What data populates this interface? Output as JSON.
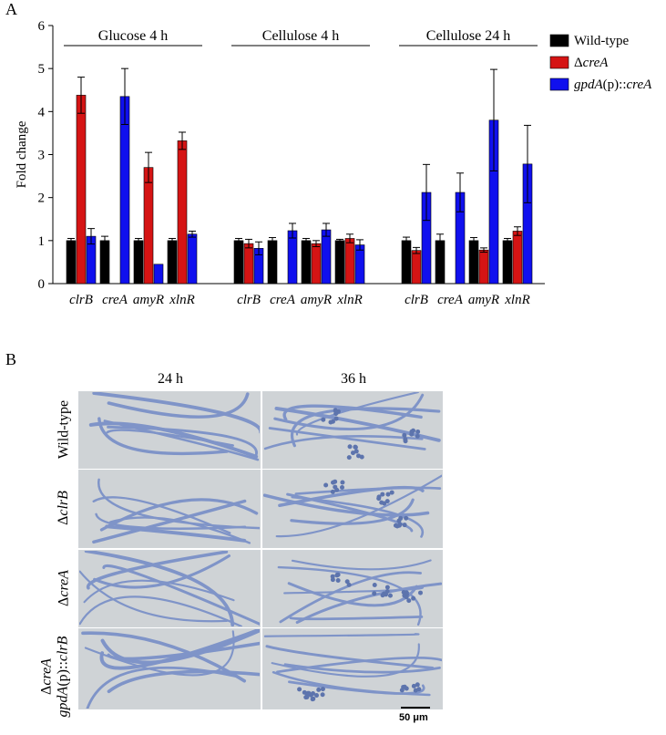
{
  "panel_a_label": "A",
  "panel_b_label": "B",
  "chart_data": {
    "type": "bar",
    "ylabel": "Fold change",
    "ylim": [
      0,
      6
    ],
    "yticks": [
      0,
      1,
      2,
      3,
      4,
      5,
      6
    ],
    "legend_position": "top-right",
    "colors": {
      "Wild-type": "#000000",
      "creA": "#d51414",
      "gpdA": "#1010ee"
    },
    "legend": [
      {
        "key": "Wild-type",
        "parts": [
          {
            "t": "Wild-type",
            "i": false
          }
        ]
      },
      {
        "key": "creA",
        "parts": [
          {
            "t": "Δ",
            "i": false
          },
          {
            "t": "creA",
            "i": true
          }
        ]
      },
      {
        "key": "gpdA",
        "parts": [
          {
            "t": "gpdA",
            "i": true
          },
          {
            "t": "(p)::",
            "i": false
          },
          {
            "t": "creA",
            "i": true
          }
        ]
      }
    ],
    "groups": [
      {
        "title": "Glucose 4 h",
        "categories": [
          "clrB",
          "creA",
          "amyR",
          "xlnR"
        ],
        "series": [
          {
            "key": "Wild-type",
            "values": [
              1.0,
              1.0,
              1.0,
              1.0
            ],
            "errors": [
              0.05,
              0.1,
              0.05,
              0.05
            ]
          },
          {
            "key": "creA",
            "values": [
              4.38,
              null,
              2.7,
              3.32
            ],
            "errors": [
              0.42,
              null,
              0.35,
              0.2
            ]
          },
          {
            "key": "gpdA",
            "values": [
              1.1,
              4.35,
              0.45,
              1.15
            ],
            "errors": [
              0.18,
              0.65,
              0.0,
              0.07
            ]
          }
        ]
      },
      {
        "title": "Cellulose 4 h",
        "categories": [
          "clrB",
          "creA",
          "amyR",
          "xlnR"
        ],
        "series": [
          {
            "key": "Wild-type",
            "values": [
              1.0,
              1.0,
              1.0,
              1.0
            ],
            "errors": [
              0.05,
              0.07,
              0.05,
              0.03
            ]
          },
          {
            "key": "creA",
            "values": [
              0.93,
              null,
              0.93,
              1.05
            ],
            "errors": [
              0.1,
              null,
              0.07,
              0.1
            ]
          },
          {
            "key": "gpdA",
            "values": [
              0.82,
              1.23,
              1.25,
              0.9
            ],
            "errors": [
              0.15,
              0.17,
              0.15,
              0.12
            ]
          }
        ]
      },
      {
        "title": "Cellulose 24 h",
        "categories": [
          "clrB",
          "creA",
          "amyR",
          "xlnR"
        ],
        "series": [
          {
            "key": "Wild-type",
            "values": [
              1.0,
              1.0,
              1.0,
              1.0
            ],
            "errors": [
              0.08,
              0.15,
              0.07,
              0.05
            ]
          },
          {
            "key": "creA",
            "values": [
              0.77,
              null,
              0.78,
              1.22
            ],
            "errors": [
              0.07,
              null,
              0.05,
              0.1
            ]
          },
          {
            "key": "gpdA",
            "values": [
              2.12,
              2.12,
              3.8,
              2.78
            ],
            "errors": [
              0.65,
              0.45,
              1.18,
              0.9
            ]
          }
        ]
      }
    ]
  },
  "panel_b": {
    "columns": [
      "24 h",
      "36 h"
    ],
    "rows": [
      {
        "parts": [
          {
            "t": "Wild-type",
            "i": false
          }
        ]
      },
      {
        "parts": [
          {
            "t": "Δ",
            "i": false
          },
          {
            "t": "clrB",
            "i": true
          }
        ]
      },
      {
        "parts": [
          {
            "t": "Δ",
            "i": false
          },
          {
            "t": "creA",
            "i": true
          }
        ]
      },
      {
        "parts": [
          {
            "t": "Δ",
            "i": false
          },
          {
            "t": "creA",
            "i": true
          }
        ],
        "parts2": [
          {
            "t": "gpdA",
            "i": true
          },
          {
            "t": "(p)::",
            "i": false
          },
          {
            "t": "clrB",
            "i": true
          }
        ]
      }
    ],
    "scale_bar": "50 μm",
    "hypha_color": "#7f94c8",
    "background_color": "#cfd3d6"
  }
}
